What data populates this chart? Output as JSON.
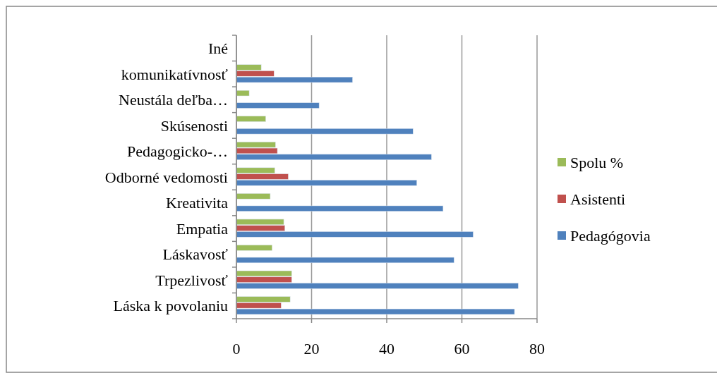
{
  "chart_data": {
    "type": "bar",
    "orientation": "horizontal",
    "categories": [
      "Iné",
      "komunikatívnosť",
      "Neustála deľba…",
      "Skúsenosti",
      "Pedagogicko-…",
      "Odborné vedomosti",
      "Kreativita",
      "Empatia",
      "Láskavosť",
      "Trpezlivosť",
      "Láska k povolaniu"
    ],
    "series": [
      {
        "name": "Pedagógovia",
        "color": "#4f81bd",
        "values": [
          null,
          30.9,
          22.0,
          47.0,
          51.9,
          48.0,
          55.0,
          63.0,
          57.9,
          75.0,
          74.0
        ]
      },
      {
        "name": "Asistenti",
        "color": "#c0504d",
        "values": [
          null,
          10.0,
          null,
          null,
          10.9,
          13.8,
          null,
          12.9,
          null,
          14.7,
          11.9
        ]
      },
      {
        "name": "Spolu %",
        "color": "#9bbb59",
        "values": [
          null,
          6.6,
          3.4,
          7.8,
          10.4,
          10.2,
          9.0,
          12.6,
          9.5,
          14.7,
          14.3
        ]
      }
    ],
    "xlim": [
      0,
      80
    ],
    "xticks": [
      0,
      20,
      40,
      60,
      80
    ],
    "grid": "x",
    "legend": "right"
  }
}
